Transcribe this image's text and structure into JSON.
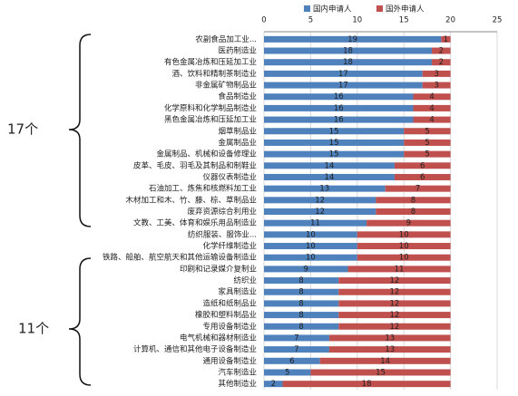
{
  "chart_data": {
    "type": "stacked-barh",
    "categories": [
      "农副食品加工业...",
      "医药制造业",
      "有色金属冶炼和压延加工业",
      "酒、饮料和精制茶制造业",
      "非金属矿物制品业",
      "食品制造业",
      "化学原料和化学制品制造业",
      "黑色金属冶炼和压延加工业",
      "烟草制品业",
      "金属制品业",
      "金属制品、机械和设备修理业",
      "皮革、毛皮、羽毛及其制品和制鞋业",
      "仪器仪表制造业",
      "石油加工、炼焦和核燃料加工业",
      "木材加工和木、竹、藤、棕、草制品业",
      "废弃资源综合利用业",
      "文教、工美、体育和娱乐用品制造业",
      "纺织服装、服饰业...",
      "化学纤维制造业",
      "铁路、船舶、航空航天和其他运输设备制造业",
      "印刷和记录媒介复制业",
      "纺织业",
      "家具制造业",
      "造纸和纸制品业",
      "橡胶和塑料制品业",
      "专用设备制造业",
      "电气机械和器材制造业",
      "计算机、通信和其他电子设备制造业",
      "通用设备制造业",
      "汽车制造业",
      "其他制造业"
    ],
    "series": [
      {
        "name": "国内申请人",
        "color": "#4f81bd",
        "values": [
          19,
          18,
          18,
          17,
          17,
          16,
          16,
          16,
          15,
          15,
          15,
          14,
          14,
          13,
          12,
          12,
          11,
          10,
          10,
          10,
          9,
          8,
          8,
          8,
          8,
          8,
          7,
          7,
          6,
          5,
          2
        ]
      },
      {
        "name": "国外申请人",
        "color": "#c0504d",
        "values": [
          1,
          2,
          2,
          3,
          3,
          4,
          4,
          4,
          5,
          5,
          5,
          6,
          6,
          7,
          8,
          8,
          9,
          10,
          10,
          10,
          11,
          12,
          12,
          12,
          12,
          12,
          13,
          13,
          14,
          15,
          18
        ]
      }
    ],
    "xlim": [
      0,
      25
    ],
    "xticks": [
      0,
      5,
      10,
      15,
      20,
      25
    ],
    "grid": true,
    "legend": "top",
    "annotations": [
      "17个",
      "11个"
    ]
  }
}
